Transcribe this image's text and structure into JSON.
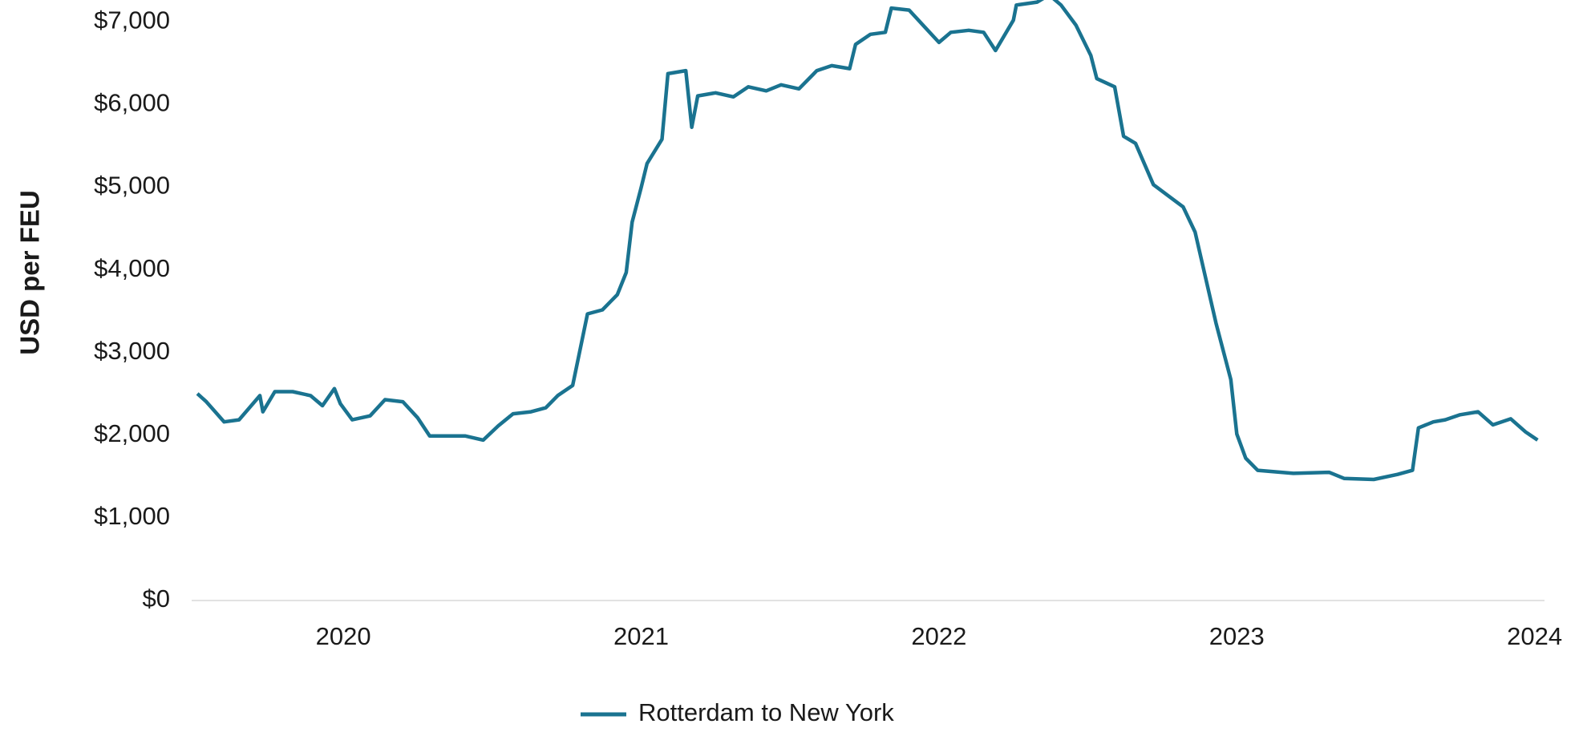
{
  "chart_data": {
    "type": "line",
    "y_label": "USD per FEU",
    "x": [
      2019.51,
      2019.54,
      2019.6,
      2019.65,
      2019.72,
      2019.73,
      2019.77,
      2019.83,
      2019.89,
      2019.93,
      2019.97,
      2019.99,
      2020.03,
      2020.09,
      2020.14,
      2020.2,
      2020.25,
      2020.29,
      2020.34,
      2020.41,
      2020.47,
      2020.52,
      2020.57,
      2020.63,
      2020.68,
      2020.72,
      2020.77,
      2020.82,
      2020.87,
      2020.92,
      2020.95,
      2020.97,
      2021.0,
      2021.02,
      2021.07,
      2021.09,
      2021.15,
      2021.17,
      2021.19,
      2021.25,
      2021.31,
      2021.36,
      2021.42,
      2021.47,
      2021.53,
      2021.59,
      2021.64,
      2021.7,
      2021.72,
      2021.77,
      2021.82,
      2021.84,
      2021.9,
      2021.95,
      2022.0,
      2022.04,
      2022.1,
      2022.15,
      2022.19,
      2022.25,
      2022.26,
      2022.33,
      2022.37,
      2022.41,
      2022.46,
      2022.51,
      2022.53,
      2022.59,
      2022.62,
      2022.66,
      2022.72,
      2022.77,
      2022.82,
      2022.86,
      2022.93,
      2022.98,
      2023.0,
      2023.03,
      2023.07,
      2023.19,
      2023.31,
      2023.36,
      2023.46,
      2023.54,
      2023.59,
      2023.61,
      2023.66,
      2023.7,
      2023.75,
      2023.81,
      2023.86,
      2023.92,
      2023.97,
      2024.01
    ],
    "series": [
      {
        "name": "Rotterdam to New York",
        "color": "#1a7390",
        "values": [
          2503,
          2405,
          2161,
          2186,
          2479,
          2283,
          2527,
          2527,
          2479,
          2357,
          2564,
          2381,
          2186,
          2234,
          2430,
          2405,
          2210,
          1990,
          1990,
          1990,
          1941,
          2112,
          2259,
          2283,
          2332,
          2479,
          2601,
          3468,
          3516,
          3700,
          3968,
          4579,
          4994,
          5287,
          5580,
          6374,
          6410,
          5726,
          6105,
          6142,
          6093,
          6215,
          6166,
          6239,
          6190,
          6410,
          6471,
          6435,
          6728,
          6850,
          6874,
          7167,
          7143,
          6947,
          6752,
          6874,
          6898,
          6874,
          6654,
          7021,
          7204,
          7240,
          7326,
          7204,
          6960,
          6593,
          6313,
          6215,
          5617,
          5531,
          5031,
          4896,
          4762,
          4457,
          3358,
          2674,
          2015,
          1722,
          1575,
          1538,
          1551,
          1477,
          1465,
          1526,
          1575,
          2088,
          2161,
          2186,
          2247,
          2283,
          2125,
          2198,
          2039,
          1941
        ]
      }
    ],
    "xlim": [
      2019.5,
      2024.1
    ],
    "xticks": [
      2020,
      2021,
      2022,
      2023,
      2024
    ],
    "ylim": [
      0,
      7265
    ],
    "yticks": [
      {
        "value": 0,
        "label": "$0"
      },
      {
        "value": 1000,
        "label": "$1,000"
      },
      {
        "value": 2000,
        "label": "$2,000"
      },
      {
        "value": 3000,
        "label": "$3,000"
      },
      {
        "value": 4000,
        "label": "$4,000"
      },
      {
        "value": 5000,
        "label": "$5,000"
      },
      {
        "value": 6000,
        "label": "$6,000"
      },
      {
        "value": 7000,
        "label": "$7,000"
      }
    ],
    "legend": "bottom"
  }
}
